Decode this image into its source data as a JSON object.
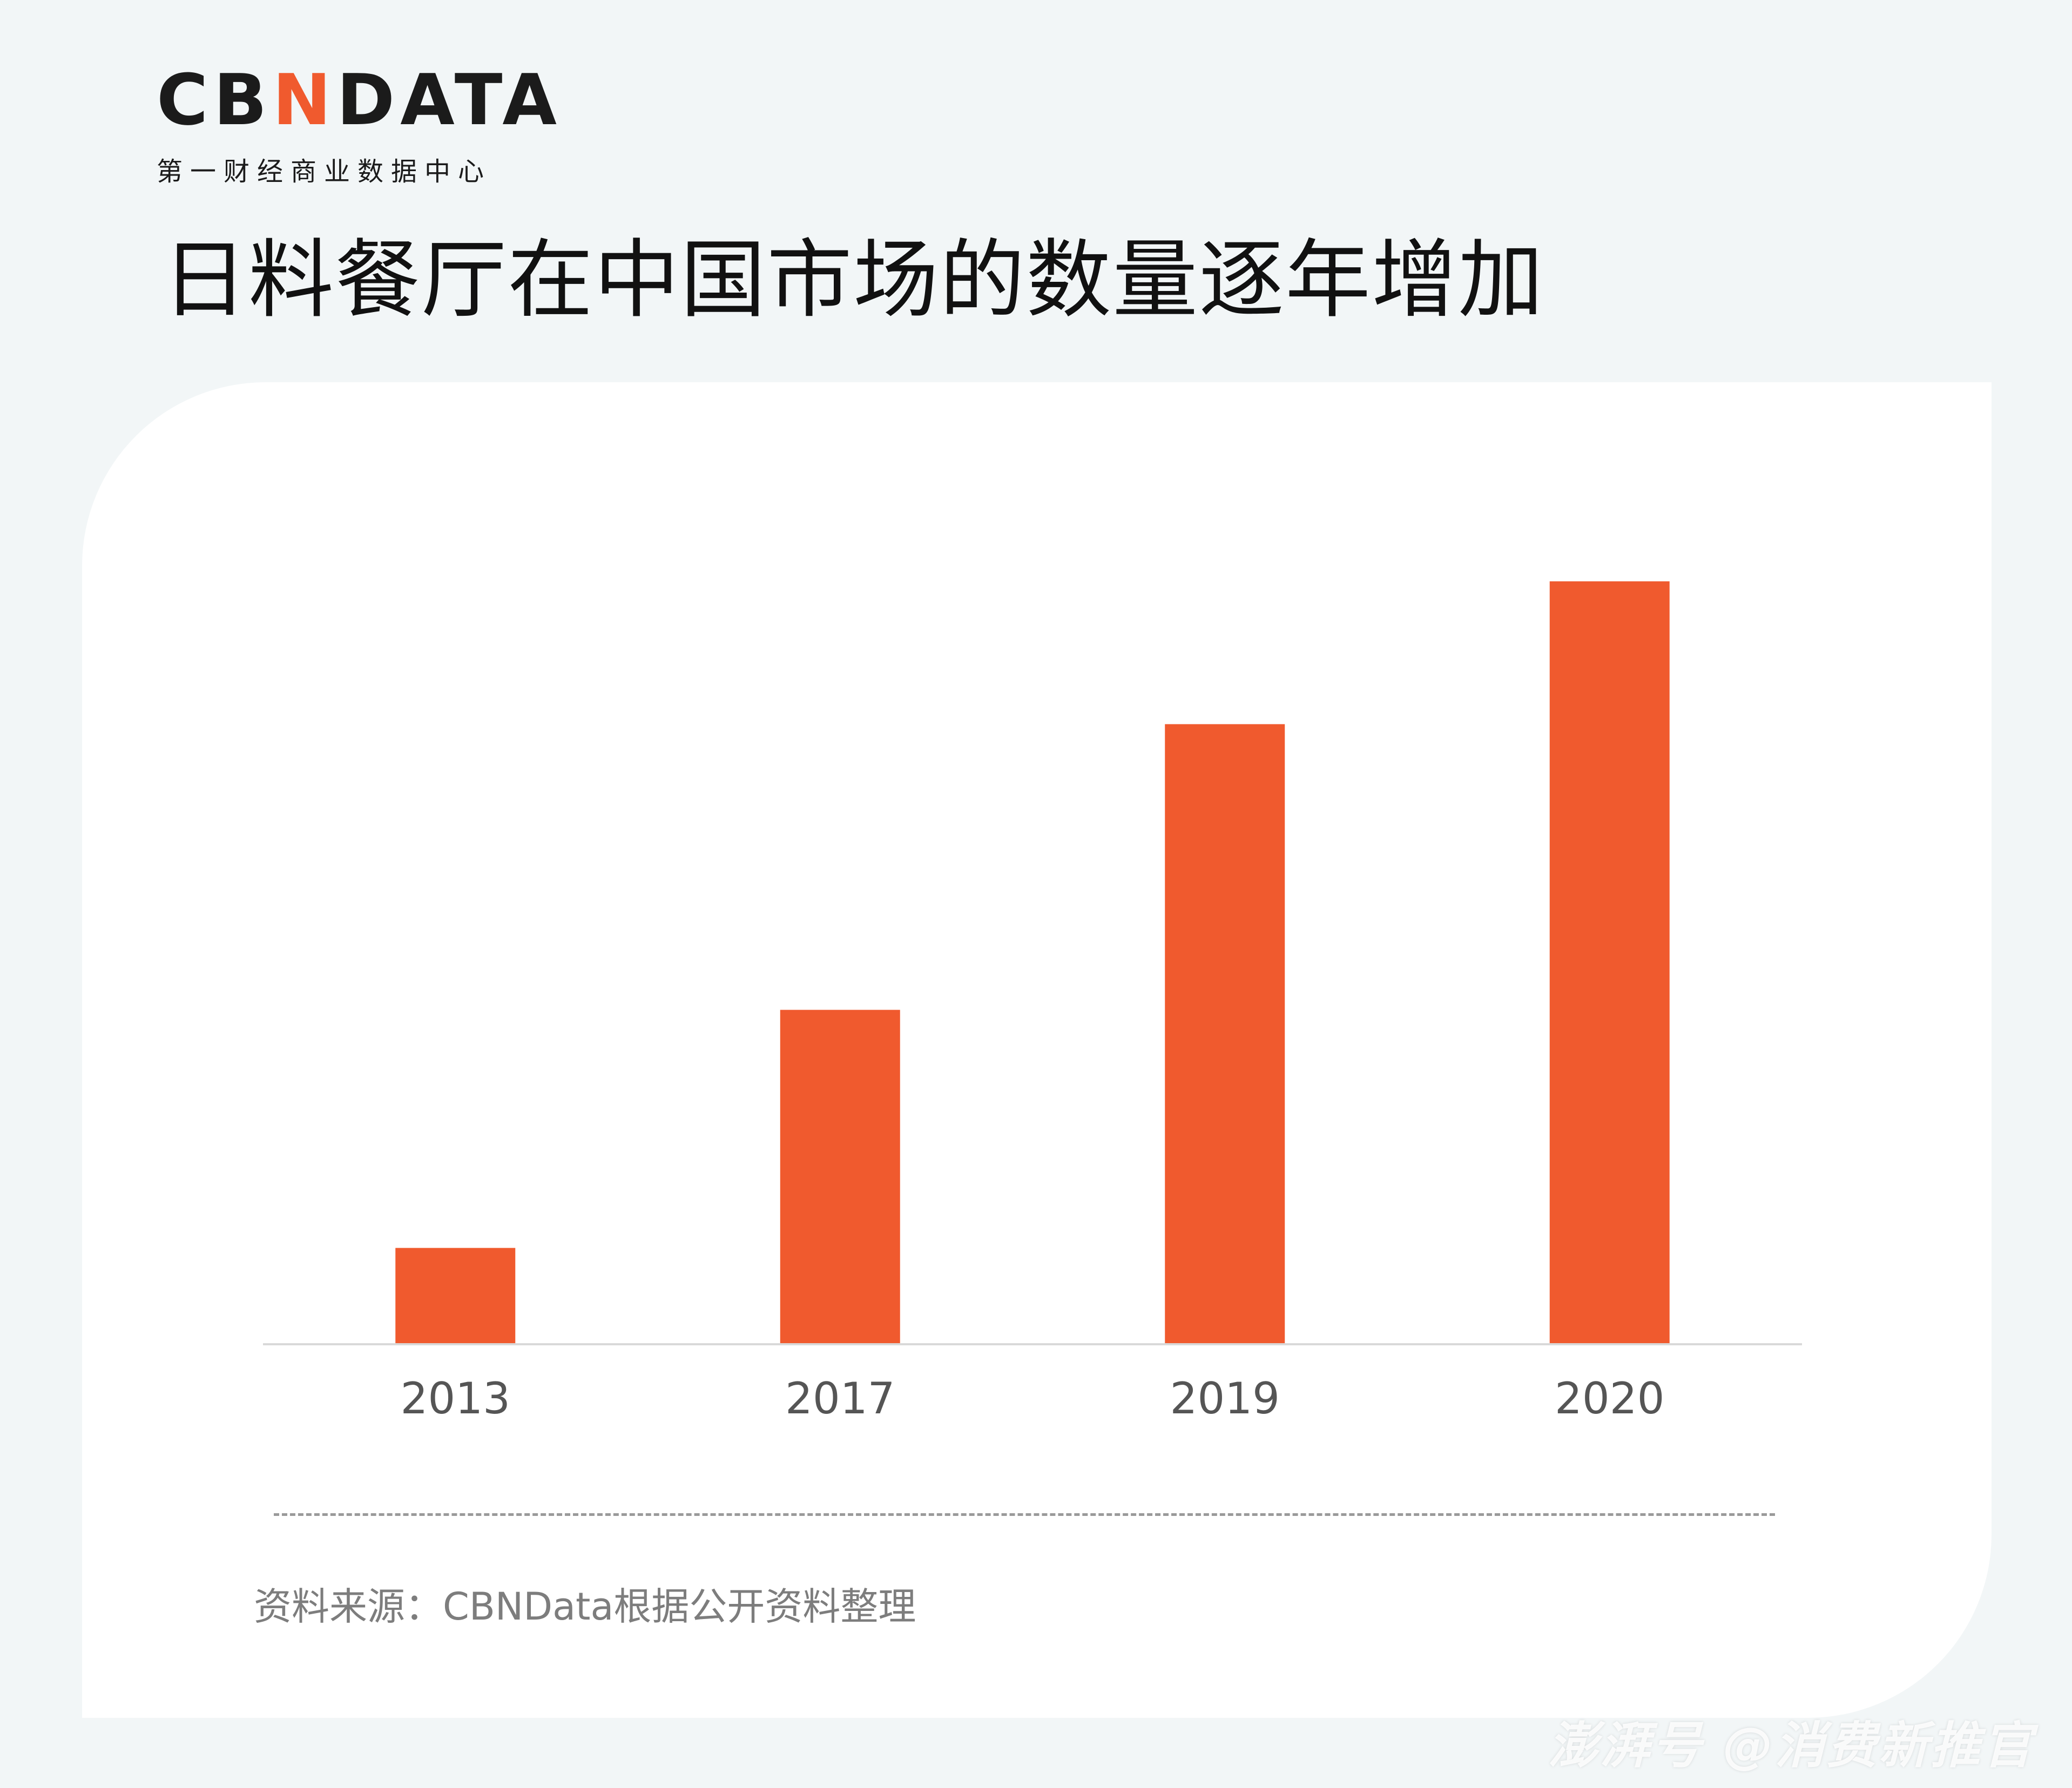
{
  "brand": {
    "logo_prefix": "CB",
    "logo_accent": "N",
    "logo_suffix": "DATA",
    "subtitle": "第一财经商业数据中心"
  },
  "headline": "日料餐厅在中国市场的数量逐年增加",
  "source": "资料来源：CBNData根据公开资料整理",
  "watermark": "澎湃号 @消费新推官",
  "colors": {
    "bar": "#f05a2e",
    "background": "#f2f6f7",
    "card": "#ffffff",
    "tick_label": "#555555",
    "axis": "#d9d9d9"
  },
  "chart_data": {
    "type": "bar",
    "title": "日料餐厅在中国市场的数量逐年增加",
    "xlabel": "",
    "ylabel": "",
    "categories": [
      "2013",
      "2017",
      "2019",
      "2020"
    ],
    "values": [
      12,
      42,
      78,
      96
    ],
    "ylim": [
      0,
      100
    ],
    "grid": false,
    "legend": "none"
  }
}
